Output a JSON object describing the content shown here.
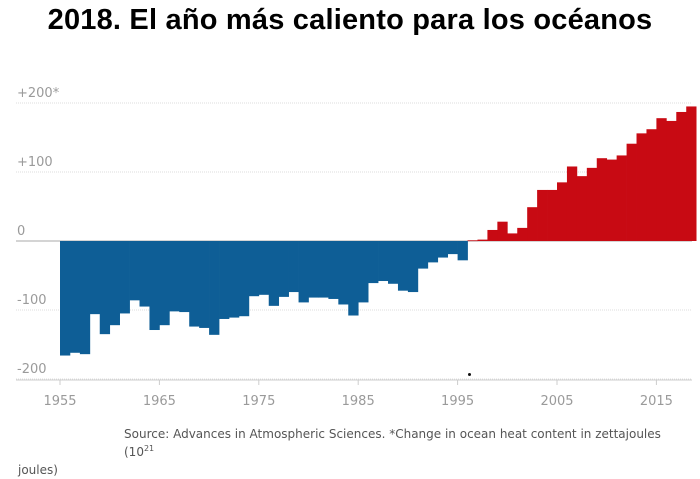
{
  "header": {
    "title": "2018. El año más caliento para los océanos"
  },
  "source": {
    "text": "Source: Advances in Atmospheric Sciences. *Change in ocean heat content in zettajoules (10",
    "superscript": "21",
    "continuation": "joules)"
  },
  "chart_data": {
    "type": "bar",
    "title": "2018. El año más caliento para los océanos",
    "xlabel": "",
    "ylabel": "",
    "ylim": [
      -205,
      215
    ],
    "xlim": [
      1955,
      2018
    ],
    "grid": true,
    "legend": "none",
    "y_ticks": [
      {
        "value": 200,
        "label": "+200*"
      },
      {
        "value": 100,
        "label": "+100"
      },
      {
        "value": 0,
        "label": "0"
      },
      {
        "value": -100,
        "label": "-100"
      },
      {
        "value": -200,
        "label": "-200"
      }
    ],
    "x_ticks": [
      {
        "value": 1955,
        "label": "1955"
      },
      {
        "value": 1965,
        "label": "1965"
      },
      {
        "value": 1975,
        "label": "1975"
      },
      {
        "value": 1985,
        "label": "1985"
      },
      {
        "value": 1995,
        "label": "1995"
      },
      {
        "value": 2005,
        "label": "2005"
      },
      {
        "value": 2015,
        "label": "2015"
      }
    ],
    "colors": {
      "negative": "#0e5e96",
      "positive": "#c80a13",
      "grid": "#dddddd",
      "axis": "#cccccc",
      "tick_label": "#9a9a9a"
    },
    "categories": [
      1955,
      1956,
      1957,
      1958,
      1959,
      1960,
      1961,
      1962,
      1963,
      1964,
      1965,
      1966,
      1967,
      1968,
      1969,
      1970,
      1971,
      1972,
      1973,
      1974,
      1975,
      1976,
      1977,
      1978,
      1979,
      1980,
      1981,
      1982,
      1983,
      1984,
      1985,
      1986,
      1987,
      1988,
      1989,
      1990,
      1991,
      1992,
      1993,
      1994,
      1995,
      1996,
      1997,
      1998,
      1999,
      2000,
      2001,
      2002,
      2003,
      2004,
      2005,
      2006,
      2007,
      2008,
      2009,
      2010,
      2011,
      2012,
      2013,
      2014,
      2015,
      2016,
      2017,
      2018
    ],
    "values": [
      -166,
      -162,
      -164,
      -106,
      -135,
      -122,
      -105,
      -86,
      -95,
      -129,
      -122,
      -102,
      -103,
      -124,
      -126,
      -136,
      -113,
      -111,
      -109,
      -80,
      -78,
      -94,
      -81,
      -74,
      -89,
      -82,
      -82,
      -84,
      -92,
      -108,
      -89,
      -61,
      -58,
      -62,
      -72,
      -74,
      -40,
      -31,
      -24,
      -19,
      -28,
      1,
      2,
      16,
      28,
      11,
      19,
      49,
      74,
      74,
      85,
      108,
      94,
      106,
      120,
      118,
      124,
      141,
      156,
      162,
      178,
      174,
      187,
      195
    ]
  }
}
